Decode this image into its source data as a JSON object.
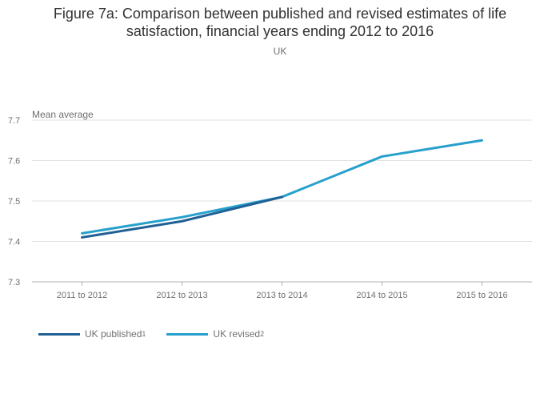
{
  "title_line1": "Figure 7a: Comparison between published and revised estimates of life",
  "title_line2": "satisfaction, financial years ending 2012 to 2016",
  "subtitle": "UK",
  "chart_data": {
    "type": "line",
    "title": "Figure 7a: Comparison between published and revised estimates of life satisfaction, financial years ending 2012 to 2016",
    "subtitle": "UK",
    "ylabel": "Mean average",
    "xlabel": "",
    "categories": [
      "2011 to 2012",
      "2012 to 2013",
      "2013 to 2014",
      "2014 to 2015",
      "2015 to 2016"
    ],
    "ylim": [
      7.3,
      7.7
    ],
    "yticks": [
      "7.7",
      "7.6",
      "7.5",
      "7.4",
      "7.3"
    ],
    "grid": true,
    "legend_position": "bottom-left",
    "series": [
      {
        "name": "UK published",
        "superscript": "1",
        "color": "#206095",
        "values": [
          7.41,
          7.45,
          7.51,
          null,
          null
        ]
      },
      {
        "name": "UK revised",
        "superscript": "2",
        "color": "#27a0cc",
        "values": [
          7.42,
          7.46,
          7.51,
          7.61,
          7.65
        ]
      }
    ]
  }
}
